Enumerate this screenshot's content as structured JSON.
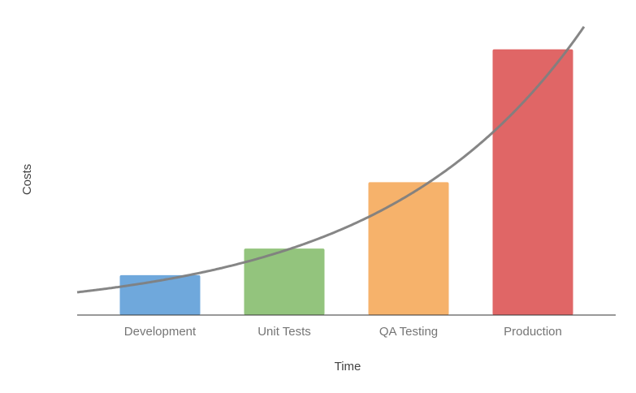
{
  "chart_data": {
    "type": "bar",
    "categories": [
      "Development",
      "Unit Tests",
      "QA Testing",
      "Production"
    ],
    "values": [
      1.5,
      2.5,
      5,
      10
    ],
    "colors": [
      "#6fa8dc",
      "#93c47d",
      "#f6b26b",
      "#e06666"
    ],
    "xlabel": "Time",
    "ylabel": "Costs",
    "ylim": [
      0,
      11
    ],
    "grid": false,
    "legend": "none",
    "trendline": {
      "type": "exponential",
      "color": "#808080",
      "values_at_categories": [
        1.3,
        2.45,
        4.6,
        8.4
      ]
    }
  }
}
